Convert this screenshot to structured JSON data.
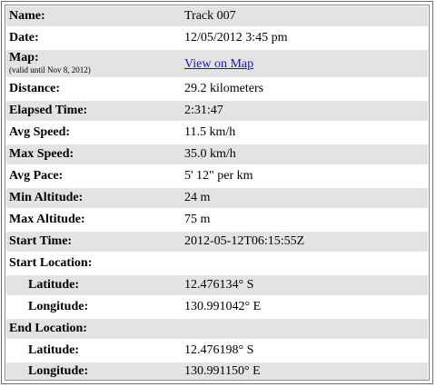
{
  "track": {
    "name_label": "Name:",
    "name_value": "Track 007",
    "date_label": "Date:",
    "date_value": "12/05/2012 3:45 pm",
    "map_label": "Map:",
    "map_note": "(valid until Nov 8, 2012)",
    "map_link": "View on Map",
    "distance_label": "Distance:",
    "distance_value": "29.2 kilometers",
    "elapsed_label": "Elapsed Time:",
    "elapsed_value": "2:31:47",
    "avg_speed_label": "Avg Speed:",
    "avg_speed_value": "11.5 km/h",
    "max_speed_label": "Max Speed:",
    "max_speed_value": "35.0 km/h",
    "avg_pace_label": "Avg Pace:",
    "avg_pace_value": "5' 12\" per km",
    "min_alt_label": "Min Altitude:",
    "min_alt_value": "24 m",
    "max_alt_label": "Max Altitude:",
    "max_alt_value": "75 m",
    "start_time_label": "Start Time:",
    "start_time_value": "2012-05-12T06:15:55Z",
    "start_location_label": "Start Location:",
    "start_lat_label": "Latitude:",
    "start_lat_value": "12.476134° S",
    "start_lon_label": "Longitude:",
    "start_lon_value": "130.991042° E",
    "end_location_label": "End Location:",
    "end_lat_label": "Latitude:",
    "end_lat_value": "12.476198° S",
    "end_lon_label": "Longitude:",
    "end_lon_value": "130.991150° E"
  },
  "colors": {
    "shaded_row": "#e3e3e3",
    "link": "#1d14c8"
  }
}
